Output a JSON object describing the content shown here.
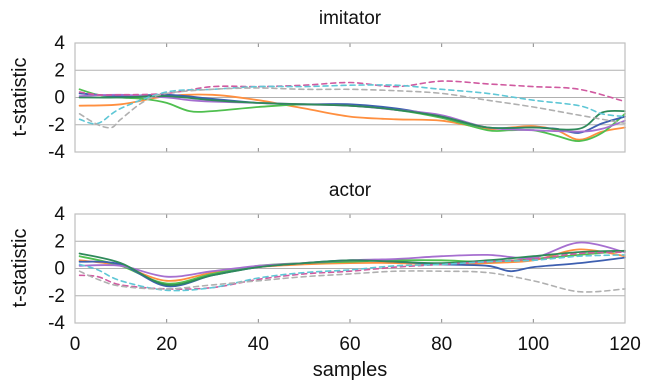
{
  "chart_data": [
    {
      "type": "line",
      "title": "imitator",
      "ylabel": "t-statistic",
      "xlabel": "",
      "xlim": [
        0,
        120
      ],
      "ylim": [
        -4,
        4
      ],
      "yticks": [
        4,
        2,
        0,
        -2,
        -4
      ],
      "xticks": [],
      "grid": "horizontal",
      "series": [
        {
          "color": "#ff8f3f",
          "dashed": false,
          "x": [
            1,
            10,
            20,
            30,
            40,
            50,
            60,
            70,
            80,
            90,
            95,
            100,
            105,
            110,
            115,
            120
          ],
          "y": [
            -0.6,
            -0.5,
            0.1,
            0.2,
            -0.2,
            -0.8,
            -1.4,
            -1.6,
            -1.7,
            -2.3,
            -2.2,
            -2.1,
            -2.4,
            -3.1,
            -2.5,
            -2.2
          ]
        },
        {
          "color": "#4fbf4f",
          "dashed": false,
          "x": [
            1,
            5,
            10,
            15,
            20,
            25,
            30,
            40,
            50,
            60,
            70,
            80,
            90,
            95,
            100,
            105,
            110,
            115,
            120
          ],
          "y": [
            0.6,
            0.2,
            0.0,
            -0.1,
            -0.4,
            -1.0,
            -1.0,
            -0.7,
            -0.5,
            -0.6,
            -0.9,
            -1.5,
            -2.4,
            -2.4,
            -2.4,
            -2.8,
            -3.2,
            -2.6,
            -1.2
          ]
        },
        {
          "color": "#3d5fb0",
          "dashed": false,
          "x": [
            1,
            10,
            20,
            30,
            40,
            50,
            60,
            70,
            80,
            90,
            100,
            105,
            110,
            115,
            120
          ],
          "y": [
            0.3,
            0.1,
            0.2,
            -0.1,
            -0.4,
            -0.5,
            -0.5,
            -0.8,
            -1.4,
            -2.2,
            -2.2,
            -2.3,
            -2.6,
            -1.9,
            -1.4
          ]
        },
        {
          "color": "#a66fd0",
          "dashed": false,
          "x": [
            1,
            10,
            20,
            25,
            30,
            40,
            50,
            60,
            70,
            80,
            90,
            100,
            110,
            115,
            120
          ],
          "y": [
            0.1,
            0.2,
            0.0,
            -0.2,
            -0.3,
            -0.4,
            -0.5,
            -0.6,
            -0.9,
            -1.3,
            -2.2,
            -2.4,
            -2.5,
            -2.3,
            -1.7
          ]
        },
        {
          "color": "#2e8a5a",
          "dashed": false,
          "x": [
            1,
            10,
            20,
            30,
            40,
            50,
            60,
            70,
            80,
            90,
            100,
            110,
            115,
            120
          ],
          "y": [
            0.0,
            0.0,
            0.1,
            -0.2,
            -0.4,
            -0.5,
            -0.6,
            -0.9,
            -1.4,
            -2.2,
            -2.2,
            -2.3,
            -1.1,
            -1.0
          ]
        },
        {
          "color": "#d05aa0",
          "dashed": true,
          "x": [
            1,
            5,
            10,
            20,
            30,
            40,
            50,
            60,
            70,
            80,
            90,
            100,
            110,
            120
          ],
          "y": [
            0.4,
            0.2,
            0.2,
            0.3,
            0.8,
            0.8,
            0.9,
            1.1,
            0.8,
            1.2,
            1.0,
            0.8,
            0.6,
            -0.3
          ]
        },
        {
          "color": "#5fc7d6",
          "dashed": true,
          "x": [
            1,
            5,
            10,
            20,
            30,
            40,
            50,
            60,
            70,
            80,
            90,
            100,
            110,
            115,
            120
          ],
          "y": [
            -1.6,
            -1.9,
            -0.8,
            0.4,
            0.6,
            0.8,
            0.8,
            0.9,
            0.9,
            0.6,
            0.3,
            -0.2,
            -0.6,
            -1.2,
            -1.4
          ]
        },
        {
          "color": "#b0b0b0",
          "dashed": true,
          "x": [
            1,
            5,
            8,
            10,
            15,
            20,
            30,
            40,
            50,
            60,
            70,
            80,
            90,
            100,
            110,
            120
          ],
          "y": [
            -1.2,
            -2.0,
            -2.2,
            -1.6,
            -0.3,
            0.3,
            0.6,
            0.7,
            0.6,
            0.6,
            0.5,
            0.3,
            -0.2,
            -0.7,
            -1.3,
            -1.9
          ]
        }
      ]
    },
    {
      "type": "line",
      "title": "actor",
      "ylabel": "t-statistic",
      "xlabel": "samples",
      "xlim": [
        0,
        120
      ],
      "ylim": [
        -4,
        4
      ],
      "yticks": [
        4,
        2,
        0,
        -2,
        -4
      ],
      "xticks": [
        0,
        20,
        40,
        60,
        80,
        100,
        120
      ],
      "grid": "horizontal",
      "series": [
        {
          "color": "#ff8f3f",
          "dashed": false,
          "x": [
            1,
            10,
            20,
            30,
            40,
            50,
            60,
            70,
            80,
            90,
            100,
            110,
            120
          ],
          "y": [
            0.6,
            0.2,
            -0.9,
            -0.3,
            0.1,
            0.3,
            0.4,
            0.4,
            0.3,
            0.4,
            0.6,
            1.4,
            0.9
          ]
        },
        {
          "color": "#4fbf4f",
          "dashed": false,
          "x": [
            1,
            10,
            20,
            30,
            40,
            50,
            60,
            70,
            80,
            90,
            100,
            110,
            120
          ],
          "y": [
            0.9,
            0.2,
            -1.1,
            -0.4,
            0.2,
            0.4,
            0.5,
            0.6,
            0.6,
            0.5,
            0.7,
            1.0,
            1.3
          ]
        },
        {
          "color": "#3d5fb0",
          "dashed": false,
          "x": [
            1,
            10,
            20,
            30,
            40,
            50,
            60,
            70,
            80,
            90,
            95,
            100,
            110,
            120
          ],
          "y": [
            0.5,
            0.3,
            -1.3,
            -0.5,
            0.1,
            0.4,
            0.6,
            0.5,
            0.3,
            0.2,
            -0.2,
            0.1,
            0.4,
            0.8
          ]
        },
        {
          "color": "#a66fd0",
          "dashed": false,
          "x": [
            1,
            10,
            20,
            30,
            40,
            50,
            60,
            70,
            80,
            90,
            100,
            110,
            120
          ],
          "y": [
            0.2,
            0.2,
            -0.6,
            -0.2,
            0.2,
            0.4,
            0.6,
            0.7,
            0.9,
            1.0,
            0.8,
            1.9,
            1.2
          ]
        },
        {
          "color": "#2e8a5a",
          "dashed": false,
          "x": [
            1,
            10,
            20,
            30,
            40,
            50,
            60,
            70,
            80,
            90,
            100,
            110,
            120
          ],
          "y": [
            1.1,
            0.4,
            -1.2,
            -0.5,
            0.1,
            0.4,
            0.6,
            0.5,
            0.4,
            0.6,
            0.9,
            1.2,
            1.3
          ]
        },
        {
          "color": "#d05aa0",
          "dashed": true,
          "x": [
            1,
            5,
            10,
            20,
            30,
            40,
            50,
            60,
            70,
            80,
            90,
            100,
            110,
            120
          ],
          "y": [
            -0.5,
            -0.6,
            -1.2,
            -1.5,
            -1.4,
            -0.8,
            -0.4,
            -0.2,
            0.1,
            0.3,
            0.5,
            0.7,
            1.1,
            1.2
          ]
        },
        {
          "color": "#5fc7d6",
          "dashed": true,
          "x": [
            1,
            5,
            10,
            20,
            30,
            40,
            50,
            60,
            70,
            80,
            90,
            100,
            110,
            120
          ],
          "y": [
            0.3,
            -0.1,
            -0.9,
            -1.6,
            -1.4,
            -0.7,
            -0.3,
            -0.1,
            0.2,
            0.3,
            0.5,
            0.6,
            0.9,
            1.0
          ]
        },
        {
          "color": "#b0b0b0",
          "dashed": true,
          "x": [
            1,
            5,
            10,
            20,
            30,
            40,
            50,
            60,
            70,
            80,
            90,
            100,
            110,
            120
          ],
          "y": [
            -0.2,
            -0.8,
            -1.3,
            -1.5,
            -1.2,
            -0.9,
            -0.6,
            -0.4,
            -0.2,
            -0.2,
            -0.3,
            -0.9,
            -1.7,
            -1.5
          ]
        }
      ]
    }
  ]
}
